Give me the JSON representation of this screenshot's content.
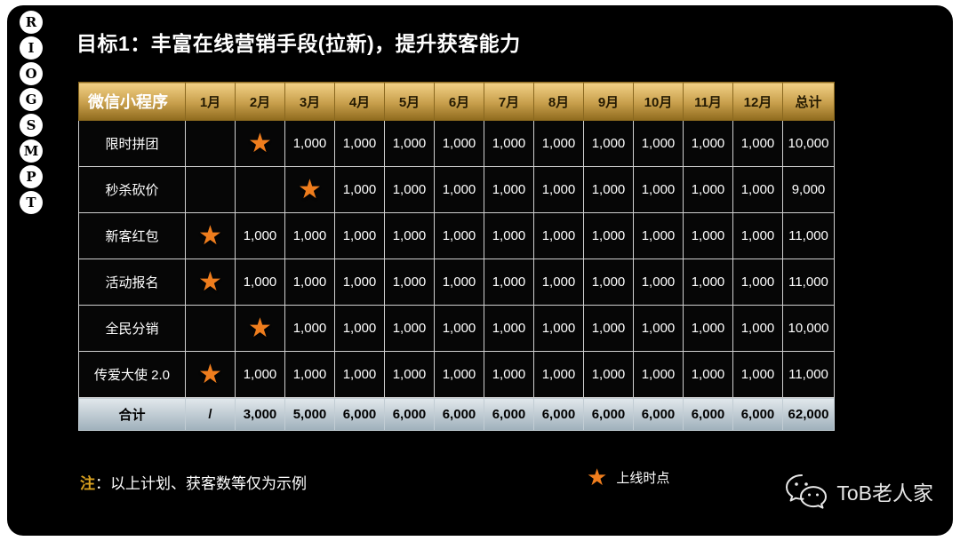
{
  "slide": {
    "title": "目标1：丰富在线营销手段(拉新)，提升获客能力"
  },
  "side_letters": [
    "R",
    "I",
    "O",
    "G",
    "S",
    "M",
    "P",
    "T"
  ],
  "icons": {
    "star": "★",
    "wechat": "wechat-logo"
  },
  "table": {
    "columns": [
      "微信小程序",
      "1月",
      "2月",
      "3月",
      "4月",
      "5月",
      "6月",
      "7月",
      "8月",
      "9月",
      "10月",
      "11月",
      "12月",
      "总计"
    ],
    "rows": [
      {
        "label": "限时拼团",
        "cells": [
          "",
          "star",
          "1,000",
          "1,000",
          "1,000",
          "1,000",
          "1,000",
          "1,000",
          "1,000",
          "1,000",
          "1,000",
          "1,000"
        ],
        "total": "10,000"
      },
      {
        "label": "秒杀砍价",
        "cells": [
          "",
          "",
          "star",
          "1,000",
          "1,000",
          "1,000",
          "1,000",
          "1,000",
          "1,000",
          "1,000",
          "1,000",
          "1,000"
        ],
        "total": "9,000"
      },
      {
        "label": "新客红包",
        "cells": [
          "star",
          "1,000",
          "1,000",
          "1,000",
          "1,000",
          "1,000",
          "1,000",
          "1,000",
          "1,000",
          "1,000",
          "1,000",
          "1,000"
        ],
        "total": "11,000"
      },
      {
        "label": "活动报名",
        "cells": [
          "star",
          "1,000",
          "1,000",
          "1,000",
          "1,000",
          "1,000",
          "1,000",
          "1,000",
          "1,000",
          "1,000",
          "1,000",
          "1,000"
        ],
        "total": "11,000"
      },
      {
        "label": "全民分销",
        "cells": [
          "",
          "star",
          "1,000",
          "1,000",
          "1,000",
          "1,000",
          "1,000",
          "1,000",
          "1,000",
          "1,000",
          "1,000",
          "1,000"
        ],
        "total": "10,000"
      },
      {
        "label": "传爱大使 2.0",
        "cells": [
          "star",
          "1,000",
          "1,000",
          "1,000",
          "1,000",
          "1,000",
          "1,000",
          "1,000",
          "1,000",
          "1,000",
          "1,000",
          "1,000"
        ],
        "total": "11,000"
      }
    ],
    "footer": {
      "label": "合计",
      "cells": [
        "/",
        "3,000",
        "5,000",
        "6,000",
        "6,000",
        "6,000",
        "6,000",
        "6,000",
        "6,000",
        "6,000",
        "6,000",
        "6,000"
      ],
      "total": "62,000"
    }
  },
  "note": {
    "prefix": "注",
    "body": "：以上计划、获客数等仅为示例"
  },
  "legend": {
    "star_label": "上线时点"
  },
  "watermark": {
    "text": "ToB老人家"
  },
  "colors": {
    "header_gold_top": "#f2d186",
    "header_gold_bottom": "#8f6b1e",
    "footer_gray_top": "#e2e8ec",
    "footer_gray_bottom": "#9fb0bb",
    "star_orange": "#ef7d1d",
    "note_gold": "#d8a01f",
    "slide_bg": "#000000"
  }
}
